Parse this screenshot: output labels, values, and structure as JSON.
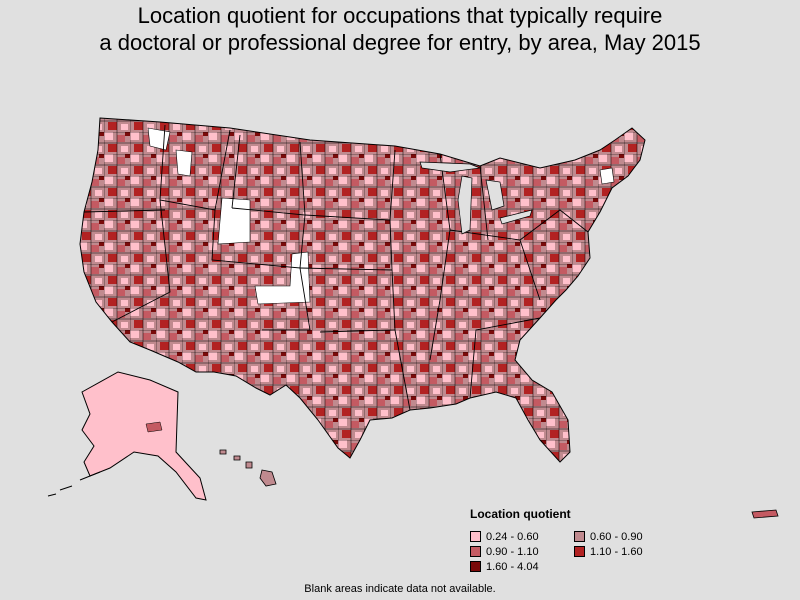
{
  "title_line1": "Location quotient for occupations that typically require",
  "title_line2": "a doctoral or professional degree for entry, by area, May 2015",
  "legend": {
    "title": "Location quotient",
    "items": [
      {
        "label": "0.24 - 0.60",
        "color": "#ffc0cb"
      },
      {
        "label": "0.60 - 0.90",
        "color": "#c08a8f"
      },
      {
        "label": "0.90 - 1.10",
        "color": "#c45a62"
      },
      {
        "label": "1.10 - 1.60",
        "color": "#b22222"
      },
      {
        "label": "1.60 - 4.04",
        "color": "#7a0a0a"
      }
    ]
  },
  "footnote": "Blank areas indicate data not available.",
  "colors": {
    "background": "#e0e0e0",
    "no_data": "#ffffff",
    "border": "#000000"
  }
}
